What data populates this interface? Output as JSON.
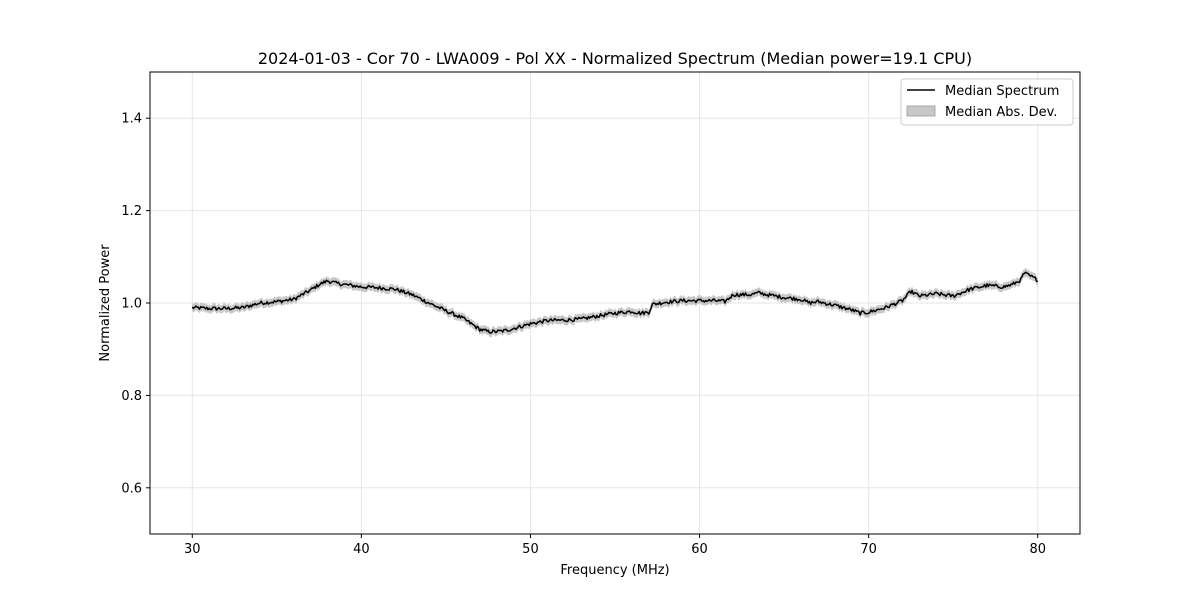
{
  "chart_data": {
    "type": "line",
    "title": "2024-01-03 - Cor 70 - LWA009 - Pol XX - Normalized Spectrum (Median power=19.1 CPU)",
    "xlabel": "Frequency (MHz)",
    "ylabel": "Normalized Power",
    "xlim": [
      27.5,
      82.5
    ],
    "ylim": [
      0.5,
      1.5
    ],
    "xticks": [
      30,
      40,
      50,
      60,
      70,
      80
    ],
    "yticks": [
      0.6,
      0.8,
      1.0,
      1.2,
      1.4
    ],
    "xtick_labels": [
      "30",
      "40",
      "50",
      "60",
      "70",
      "80"
    ],
    "ytick_labels": [
      "0.6",
      "0.8",
      "1.0",
      "1.2",
      "1.4"
    ],
    "grid": true,
    "legend_position": "top-right",
    "legend": [
      "Median Spectrum",
      "Median Abs. Dev."
    ],
    "colors": {
      "line": "#000000",
      "band": "#b0b0b0",
      "grid": "#e6e6e6"
    },
    "band_halfwidth": 0.009,
    "series": [
      {
        "name": "Median Spectrum",
        "x": [
          30,
          31,
          32,
          33,
          34,
          35,
          36,
          37,
          37.5,
          38,
          38.5,
          39,
          40,
          41,
          42,
          43,
          44,
          45,
          46,
          46.5,
          47,
          47.5,
          48,
          48.5,
          49,
          50,
          51,
          52,
          53,
          54,
          55,
          56,
          56.5,
          57,
          57.2,
          58,
          59,
          60,
          61,
          61.5,
          62,
          63,
          63.5,
          64,
          65,
          66,
          66.5,
          67,
          68,
          69,
          69.5,
          70,
          71,
          72,
          72.5,
          73,
          74,
          75,
          76,
          77,
          78,
          78.5,
          79,
          79.2,
          80
        ],
        "y": [
          0.99,
          0.988,
          0.988,
          0.99,
          1.0,
          1.003,
          1.008,
          1.028,
          1.04,
          1.048,
          1.043,
          1.04,
          1.035,
          1.033,
          1.03,
          1.018,
          1.0,
          0.983,
          0.967,
          0.955,
          0.943,
          0.938,
          0.938,
          0.94,
          0.945,
          0.955,
          0.962,
          0.963,
          0.965,
          0.972,
          0.978,
          0.982,
          0.978,
          0.98,
          0.997,
          1.002,
          1.005,
          1.005,
          1.005,
          1.003,
          1.018,
          1.018,
          1.022,
          1.018,
          1.012,
          1.008,
          1.0,
          1.003,
          0.995,
          0.985,
          0.978,
          0.98,
          0.99,
          1.005,
          1.025,
          1.015,
          1.02,
          1.015,
          1.03,
          1.038,
          1.035,
          1.04,
          1.05,
          1.065,
          1.05
        ]
      }
    ]
  }
}
